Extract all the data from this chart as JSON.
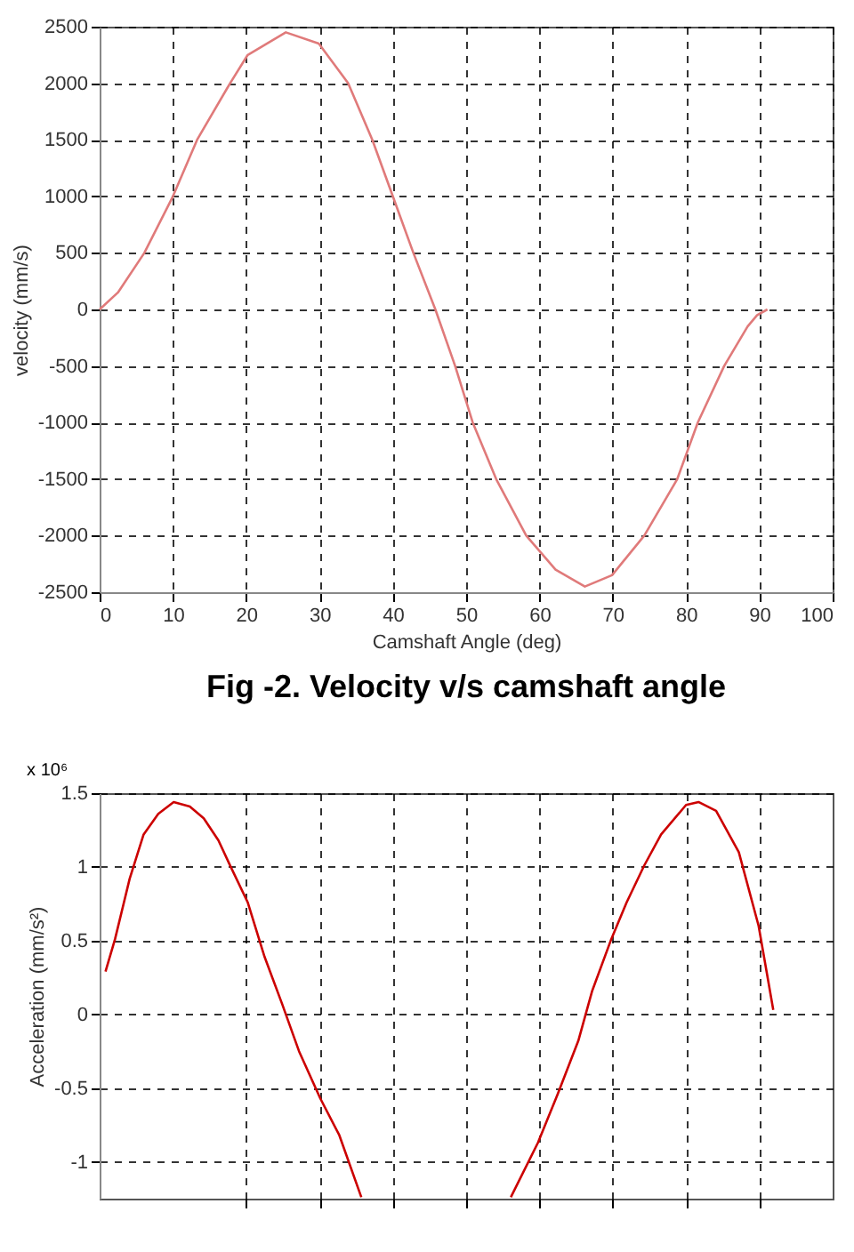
{
  "chart_data": [
    {
      "type": "line",
      "xlabel": "Camshaft Angle  (deg)",
      "ylabel": "velocity (mm/s)",
      "annotations": [
        "Fig -2. Velocity v/s camshaft angle"
      ],
      "xlim": [
        0,
        100
      ],
      "ylim": [
        -2500,
        2500
      ],
      "xticks": [
        0,
        10,
        20,
        30,
        40,
        50,
        60,
        70,
        80,
        90,
        100
      ],
      "yticks": [
        -2500,
        -2000,
        -1500,
        -1000,
        -500,
        0,
        500,
        1000,
        1500,
        2000,
        2500
      ],
      "grid": true,
      "line_style": "solid",
      "series": [
        {
          "color": "#e07a7a",
          "x": [
            0,
            2.5,
            6.1,
            10,
            13.3,
            17.8,
            20.2,
            25.4,
            29.9,
            33.9,
            37.2,
            40,
            42.8,
            45.8,
            48.5,
            50.9,
            54.1,
            58.2,
            62.2,
            66.2,
            69.9,
            74.3,
            78.8,
            81.6,
            85.2,
            88.4,
            89.7,
            91.1
          ],
          "values": [
            0,
            150,
            500,
            1000,
            1500,
            2000,
            2250,
            2450,
            2350,
            2000,
            1500,
            1000,
            500,
            0,
            -500,
            -1000,
            -1500,
            -2000,
            -2300,
            -2450,
            -2350,
            -2000,
            -1500,
            -1000,
            -500,
            -150,
            -50,
            0
          ]
        }
      ]
    },
    {
      "type": "line",
      "ylabel": "Acceleration (mm/s²)",
      "annotations": [
        "x 10⁶"
      ],
      "xlim": [
        0,
        100
      ],
      "ylim": [
        -1.25,
        1.5
      ],
      "xticks": [
        {
          "value": 20,
          "label": null
        },
        {
          "value": 30,
          "label": null
        },
        {
          "value": 40,
          "label": null
        },
        {
          "value": 50,
          "label": null
        },
        {
          "value": 60,
          "label": null
        },
        {
          "value": 70,
          "label": null
        },
        {
          "value": 80,
          "label": null
        },
        {
          "value": 90,
          "label": null
        }
      ],
      "yticks": [
        -1,
        -0.5,
        0,
        0.5,
        1,
        1.5
      ],
      "grid": true,
      "tick_labels": "y",
      "line_style": "solid",
      "series": [
        {
          "color": "#cc0000",
          "x": [
            0.8,
            2.1,
            4.1,
            6.0,
            8.0,
            10.1,
            12.3,
            14.2,
            16.2,
            17.7,
            20.2,
            22.5,
            24.9,
            27.2,
            30.1,
            32.7,
            35.7,
            46,
            56.1,
            59.8,
            62.5,
            65.3,
            67.2,
            69.8,
            71.9,
            74.3,
            76.6,
            80.0,
            81.7,
            84.1,
            87.2,
            89.9,
            91.9
          ],
          "values": [
            0.29,
            0.51,
            0.92,
            1.22,
            1.36,
            1.44,
            1.41,
            1.33,
            1.18,
            1.02,
            0.76,
            0.39,
            0.07,
            -0.25,
            -0.57,
            -0.82,
            -1.24,
            null,
            -1.24,
            -0.87,
            -0.54,
            -0.18,
            0.16,
            0.51,
            0.76,
            1.01,
            1.22,
            1.42,
            1.44,
            1.38,
            1.1,
            0.6,
            0.03
          ]
        }
      ]
    }
  ]
}
